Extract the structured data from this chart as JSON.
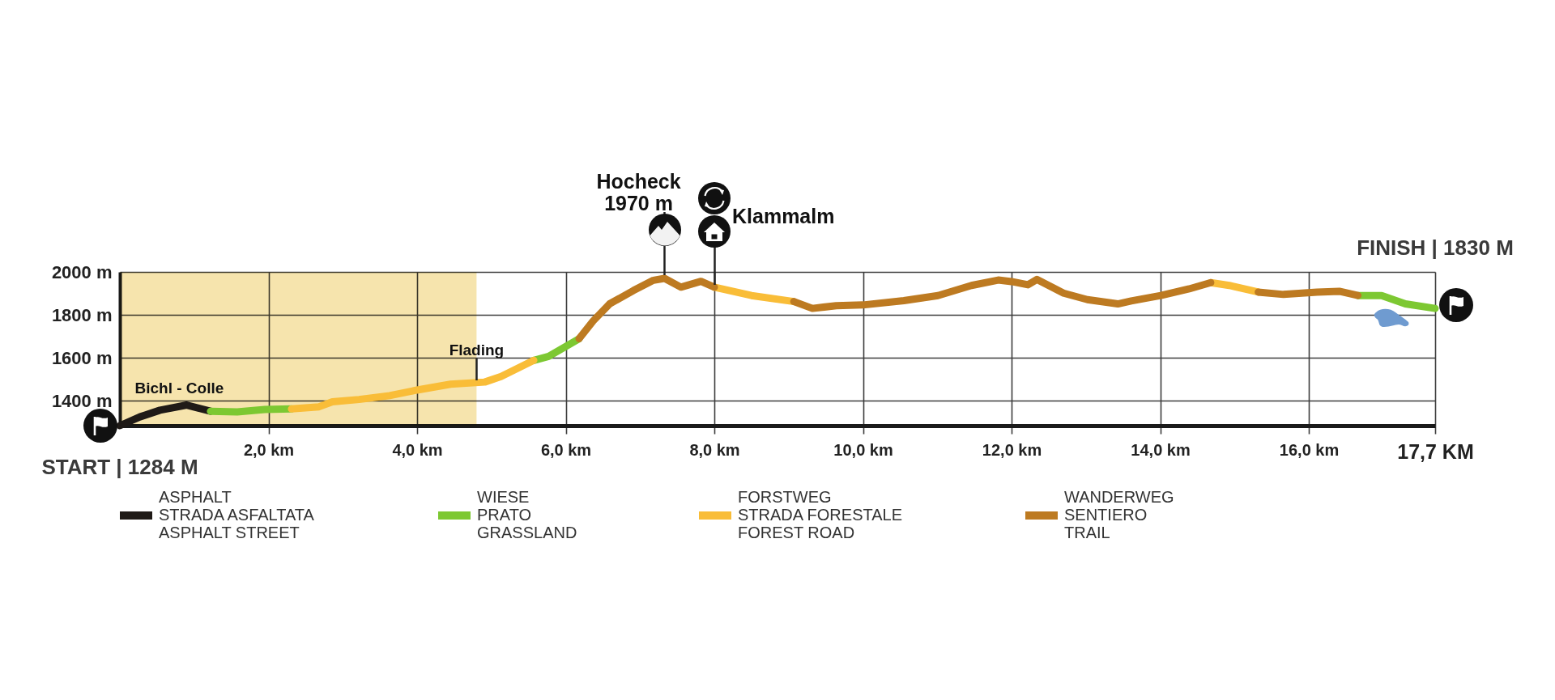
{
  "chart_data": {
    "type": "line",
    "x": [
      0,
      0.27,
      0.54,
      0.9,
      1.22,
      1.58,
      1.95,
      2.31,
      2.68,
      2.86,
      3.22,
      3.63,
      4.0,
      4.45,
      4.91,
      5.13,
      5.57,
      5.77,
      6.18,
      6.37,
      6.59,
      6.91,
      7.18,
      7.33,
      7.55,
      7.82,
      8.0,
      8.5,
      9.07,
      9.32,
      9.64,
      10.0,
      10.55,
      11.01,
      11.46,
      11.82,
      12.0,
      12.22,
      12.34,
      12.7,
      13.02,
      13.43,
      13.61,
      14.01,
      14.39,
      14.68,
      14.93,
      15.32,
      15.66,
      16.11,
      16.41,
      16.66,
      16.98,
      17.3,
      17.7
    ],
    "series": [
      {
        "name": "ASPHALT\nSTRADA ASFALTATA\nASPHALT STREET",
        "color": "#1f1a17",
        "values": [
          1284,
          1325,
          1356,
          1380,
          1351,
          null,
          null,
          null,
          null,
          null,
          null,
          null,
          null,
          null,
          null,
          null,
          null,
          null,
          null,
          null,
          null,
          null,
          null,
          null,
          null,
          null,
          null,
          null,
          null,
          null,
          null,
          null,
          null,
          null,
          null,
          null,
          null,
          null,
          null,
          null,
          null,
          null,
          null,
          null,
          null,
          null,
          null,
          null,
          null,
          null,
          null,
          null,
          null,
          null,
          null
        ]
      },
      {
        "name": "WIESE\nPRATO\nGRASSLAND",
        "color": "#7dc832",
        "values": [
          null,
          null,
          null,
          null,
          1351,
          1348,
          1359,
          1362,
          null,
          null,
          null,
          null,
          null,
          null,
          null,
          null,
          1588,
          1607,
          1689,
          null,
          null,
          null,
          null,
          null,
          null,
          null,
          null,
          null,
          null,
          null,
          null,
          null,
          null,
          null,
          null,
          null,
          null,
          null,
          null,
          null,
          null,
          null,
          null,
          null,
          null,
          null,
          null,
          null,
          null,
          null,
          null,
          1890,
          1890,
          1851,
          1830
        ]
      },
      {
        "name": "FORSTWEG\nSTRADA FORESTALE\nFOREST ROAD",
        "color": "#f9bd38",
        "values": [
          null,
          null,
          null,
          null,
          null,
          null,
          null,
          1362,
          1372,
          1395,
          1406,
          1424,
          1450,
          1477,
          1487,
          1513,
          1588,
          null,
          null,
          null,
          null,
          null,
          null,
          null,
          null,
          null,
          1929,
          1890,
          1862,
          null,
          null,
          null,
          null,
          null,
          null,
          null,
          null,
          null,
          null,
          null,
          null,
          null,
          null,
          null,
          null,
          1950,
          1937,
          1906,
          null,
          null,
          null,
          null,
          null,
          null,
          null
        ]
      },
      {
        "name": "WANDERWEG\nSENTIERO\nTRAIL",
        "color": "#bd7a21",
        "values": [
          null,
          null,
          null,
          null,
          null,
          null,
          null,
          null,
          null,
          null,
          null,
          null,
          null,
          null,
          null,
          null,
          null,
          null,
          1689,
          1772,
          1851,
          1913,
          1961,
          1970,
          1929,
          1956,
          1929,
          null,
          1862,
          1830,
          1843,
          1846,
          1866,
          1890,
          1937,
          1962,
          1955,
          1940,
          1965,
          1901,
          1871,
          1851,
          1865,
          1890,
          1921,
          1950,
          null,
          1906,
          1895,
          1906,
          1910,
          1890,
          null,
          null,
          null
        ]
      }
    ],
    "xlim": [
      0,
      17.7
    ],
    "xticks": [
      {
        "value": 2,
        "label": "2,0 km"
      },
      {
        "value": 4,
        "label": "4,0 km"
      },
      {
        "value": 6,
        "label": "6,0 km"
      },
      {
        "value": 8,
        "label": "8,0 km"
      },
      {
        "value": 10,
        "label": "10,0 km"
      },
      {
        "value": 12,
        "label": "12,0 km"
      },
      {
        "value": 14,
        "label": "14,0 km"
      },
      {
        "value": 16,
        "label": "16,0 km"
      },
      {
        "value": 17.7,
        "label": "17,7 KM"
      }
    ],
    "ylim": [
      1284,
      2000
    ],
    "yticks": [
      {
        "value": 1400,
        "label": "1400 m"
      },
      {
        "value": 1600,
        "label": "1600 m"
      },
      {
        "value": 1800,
        "label": "1800 m"
      },
      {
        "value": 2000,
        "label": "2000 m"
      }
    ],
    "bands": [
      {
        "axis": "x",
        "from": 0,
        "to": 4.8,
        "color": "#f6e4ad"
      }
    ],
    "annotations": [
      {
        "text": "START | 1284 M",
        "x": 0,
        "y": 1284
      },
      {
        "text": "FINISH | 1830 M",
        "x": 17.7,
        "y": 1830
      },
      {
        "text": "Hocheck\n1970 m",
        "x": 7.33,
        "y": 1970
      },
      {
        "text": "Klammalm",
        "x": 8.0,
        "y": 1929
      },
      {
        "text": "Bichl - Colle",
        "x": 0.8,
        "y": 1373
      },
      {
        "text": "Flading",
        "x": 4.8,
        "y": 1485
      }
    ],
    "grid": true,
    "legend": "bottom",
    "line_style": "solid"
  }
}
